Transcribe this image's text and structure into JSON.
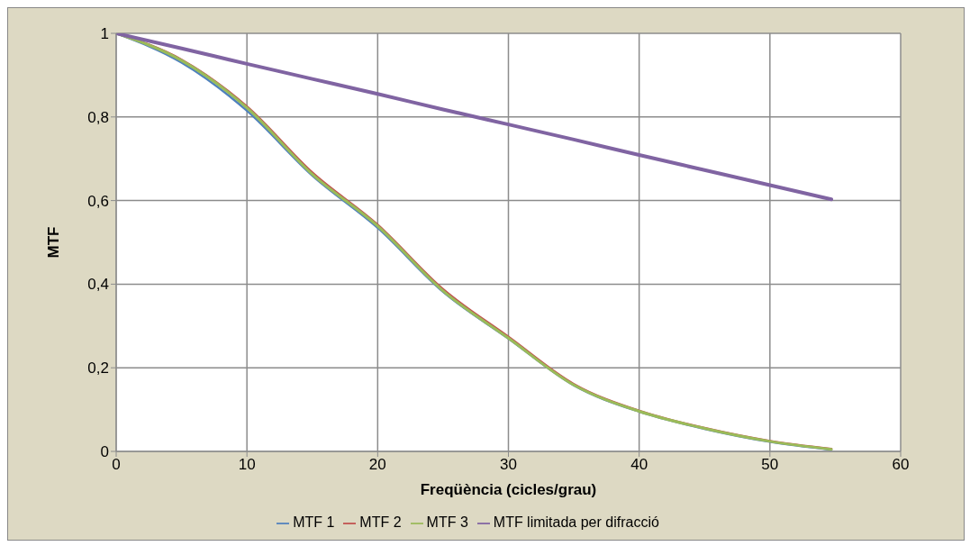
{
  "chart_data": {
    "type": "line",
    "xlabel": "Freqüència (cicles/grau)",
    "ylabel": "MTF",
    "xlim": [
      0,
      60
    ],
    "xticks": [
      0,
      10,
      20,
      30,
      40,
      50,
      60
    ],
    "ylim": [
      0,
      1
    ],
    "yticks": [
      0,
      {
        "value": 0.2,
        "label": "0,2"
      },
      {
        "value": 0.4,
        "label": "0,4"
      },
      {
        "value": 0.6,
        "label": "0,6"
      },
      {
        "value": 0.8,
        "label": "0,8"
      },
      1
    ],
    "grid": true,
    "legend": "bottom",
    "x": [
      0,
      5,
      10,
      15,
      20,
      25,
      30,
      35,
      40,
      45,
      50,
      54.7
    ],
    "series": [
      {
        "name": "MTF 1",
        "color": "#4f81bd",
        "values": [
          1,
          0.93,
          0.815,
          0.66,
          0.535,
          0.382,
          0.27,
          0.158,
          0.095,
          0.054,
          0.023,
          0.004
        ]
      },
      {
        "name": "MTF 2",
        "color": "#c0504d",
        "values": [
          1,
          0.937,
          0.825,
          0.667,
          0.542,
          0.388,
          0.274,
          0.161,
          0.097,
          0.056,
          0.025,
          0.006
        ]
      },
      {
        "name": "MTF 3",
        "color": "#9bbb59",
        "values": [
          1,
          0.935,
          0.822,
          0.663,
          0.539,
          0.384,
          0.271,
          0.159,
          0.096,
          0.055,
          0.024,
          0.005
        ]
      },
      {
        "name": "MTF limitada per difracció",
        "color": "#8064a2",
        "values": [
          1,
          0.964,
          0.927,
          0.891,
          0.855,
          0.818,
          0.782,
          0.746,
          0.709,
          0.673,
          0.637,
          0.603
        ]
      }
    ]
  }
}
